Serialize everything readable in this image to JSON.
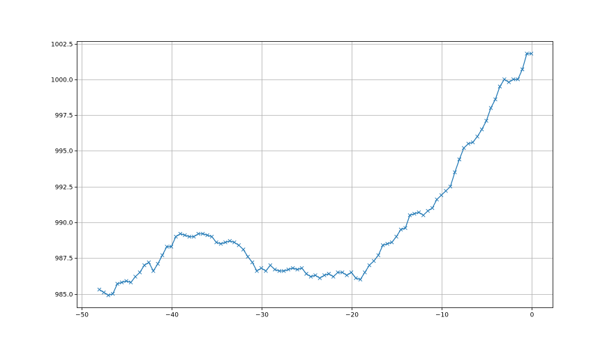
{
  "chart_data": {
    "type": "line",
    "title": "",
    "xlabel": "",
    "ylabel": "",
    "xlim": [
      -50.47,
      2.4
    ],
    "ylim": [
      984.03,
      1002.65
    ],
    "grid": true,
    "marker": "x",
    "color": "#1f77b4",
    "x_ticks": [
      -50,
      -40,
      -30,
      -20,
      -10,
      0
    ],
    "x_tick_labels": [
      "−50",
      "−40",
      "−30",
      "−20",
      "−10",
      "0"
    ],
    "y_ticks": [
      985.0,
      987.5,
      990.0,
      992.5,
      995.0,
      997.5,
      1000.0,
      1002.5
    ],
    "y_tick_labels": [
      "985.0",
      "987.5",
      "990.0",
      "992.5",
      "995.0",
      "997.5",
      "1000.0",
      "1002.5"
    ],
    "x_start": -48,
    "x_step": 0.5,
    "series": [
      {
        "values": [
          985.3,
          985.1,
          984.9,
          985.0,
          985.7,
          985.8,
          985.9,
          985.8,
          986.2,
          986.5,
          987.0,
          987.2,
          986.6,
          987.1,
          987.7,
          988.3,
          988.3,
          989.0,
          989.2,
          989.1,
          989.0,
          989.0,
          989.2,
          989.2,
          989.1,
          989.0,
          988.6,
          988.5,
          988.6,
          988.7,
          988.6,
          988.4,
          988.1,
          987.6,
          987.2,
          986.6,
          986.8,
          986.6,
          987.0,
          986.7,
          986.6,
          986.6,
          986.7,
          986.8,
          986.7,
          986.8,
          986.4,
          986.2,
          986.3,
          986.1,
          986.3,
          986.4,
          986.2,
          986.5,
          986.5,
          986.3,
          986.5,
          986.1,
          986.0,
          986.5,
          987.0,
          987.3,
          987.7,
          988.4,
          988.5,
          988.6,
          989.0,
          989.5,
          989.6,
          990.5,
          990.6,
          990.7,
          990.5,
          990.8,
          991.0,
          991.6,
          991.9,
          992.2,
          992.5,
          993.5,
          994.4,
          995.2,
          995.5,
          995.6,
          996.0,
          996.5,
          997.1,
          998.0,
          998.6,
          999.5,
          1000.0,
          999.8,
          1000.0,
          1000.0,
          1000.7,
          1001.8,
          1001.8
        ]
      }
    ]
  }
}
